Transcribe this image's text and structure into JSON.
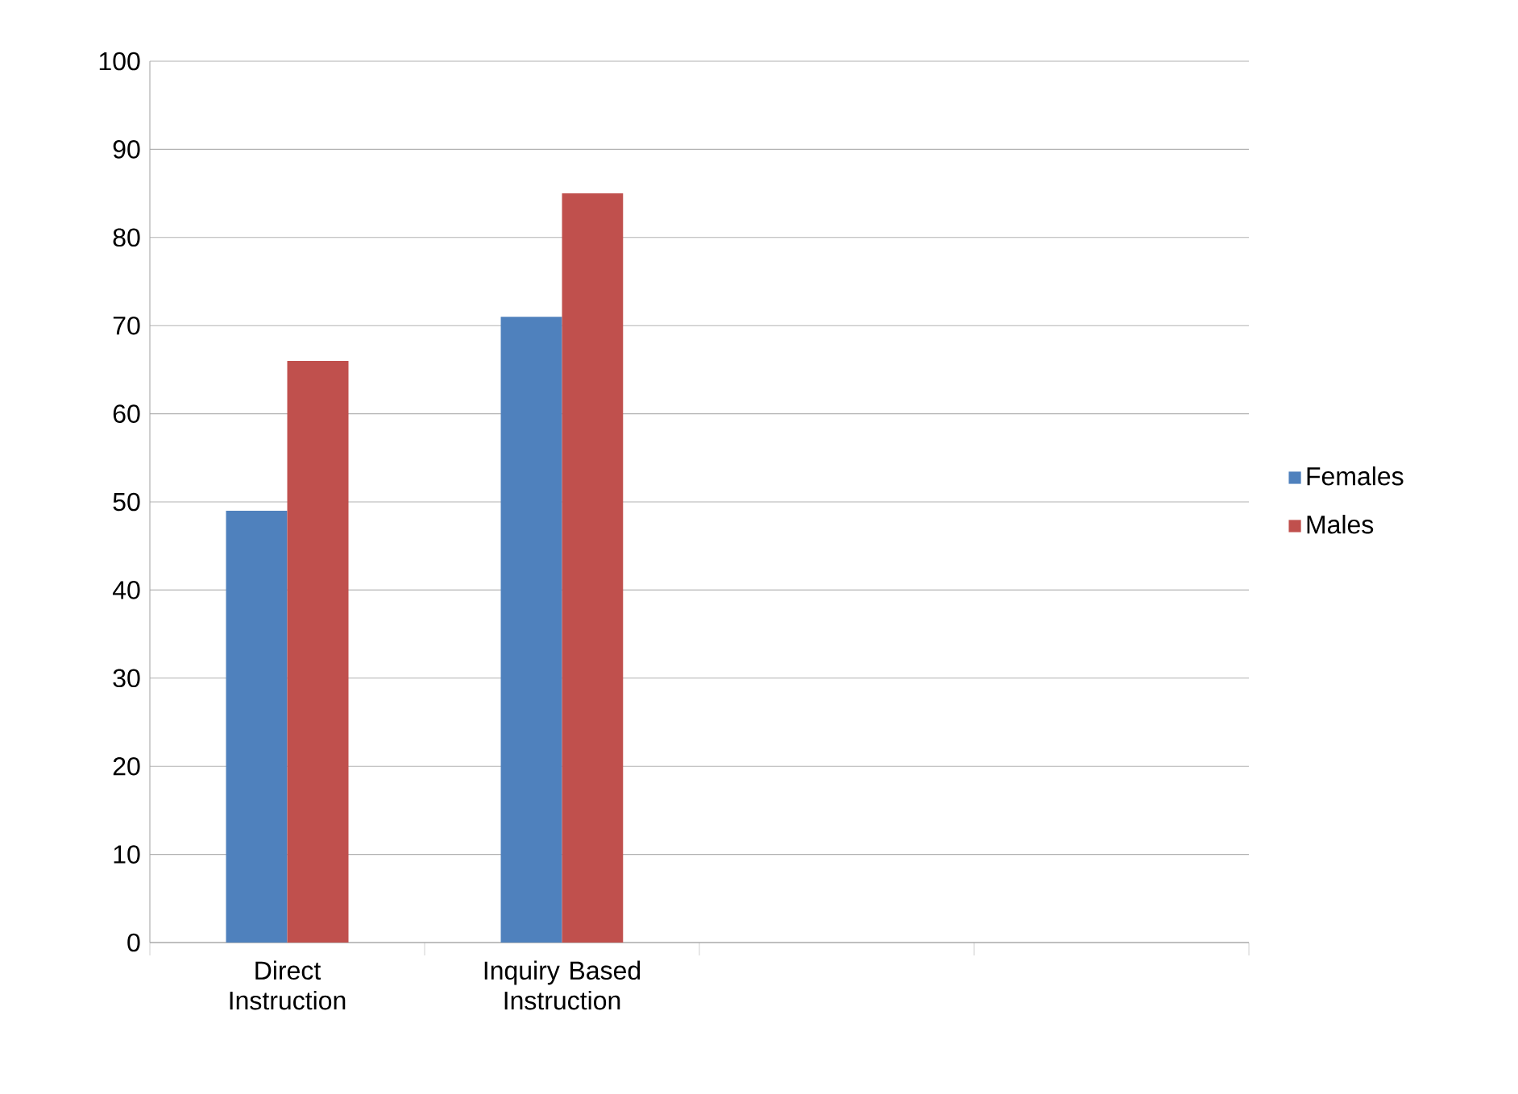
{
  "chart_data": {
    "type": "bar",
    "categories": [
      "Direct Instruction",
      "Inquiry Based Instruction",
      null,
      null
    ],
    "series": [
      {
        "name": "Females",
        "color": "#4f81bd",
        "values": [
          49,
          71,
          null,
          null
        ]
      },
      {
        "name": "Males",
        "color": "#c0504d",
        "values": [
          66,
          85,
          null,
          null
        ]
      }
    ],
    "ylim": [
      0,
      100
    ],
    "yticks": [
      0,
      10,
      20,
      30,
      40,
      50,
      60,
      70,
      80,
      90,
      100
    ],
    "grid": "y",
    "legend": "right"
  }
}
